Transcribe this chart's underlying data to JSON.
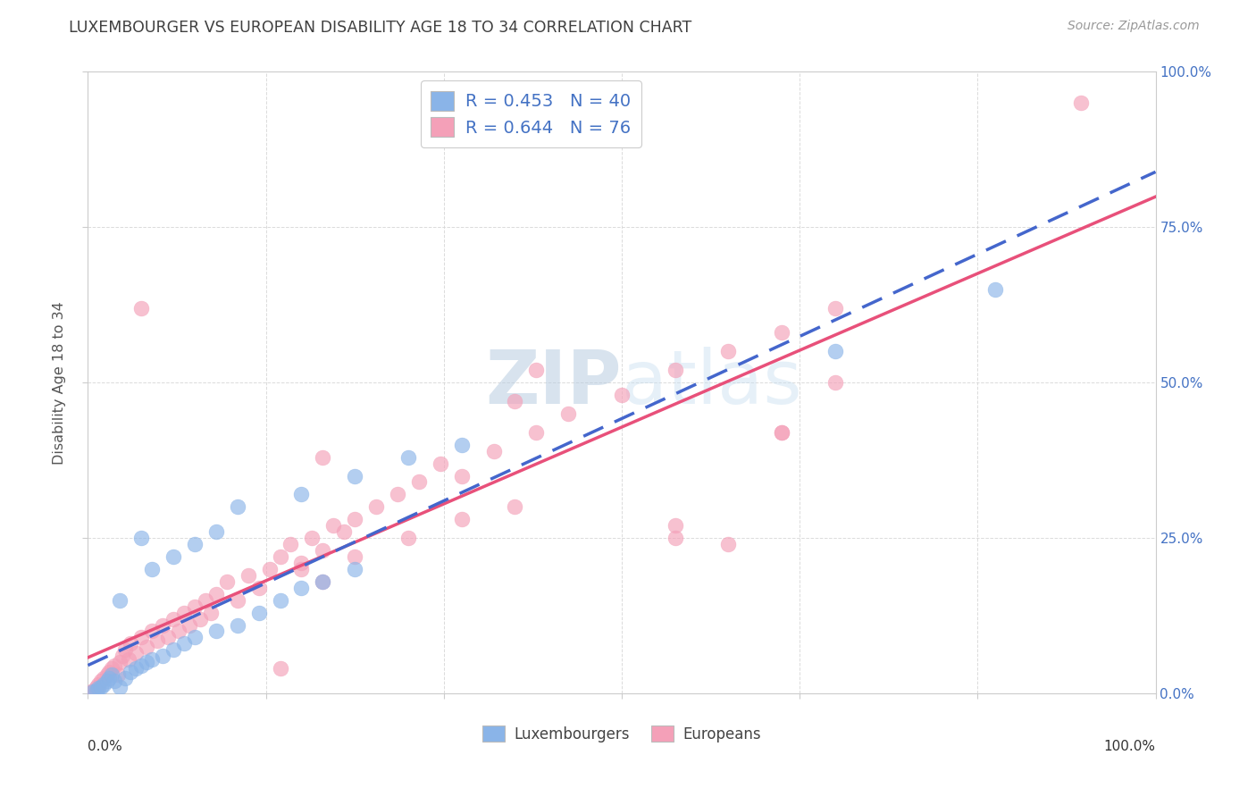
{
  "title": "LUXEMBOURGER VS EUROPEAN DISABILITY AGE 18 TO 34 CORRELATION CHART",
  "source": "Source: ZipAtlas.com",
  "ylabel": "Disability Age 18 to 34",
  "legend_lux": "Luxembourgers",
  "legend_eur": "Europeans",
  "R_lux": 0.453,
  "N_lux": 40,
  "R_eur": 0.644,
  "N_eur": 76,
  "color_lux": "#8ab4e8",
  "color_eur": "#f4a0b8",
  "line_color_lux": "#4466cc",
  "line_color_eur": "#e8507a",
  "blue_text": "#4472c4",
  "watermark_color": "#cde8f5",
  "grid_color": "#d8d8d8",
  "title_color": "#404040",
  "source_color": "#999999",
  "lux_x": [
    0.5,
    0.8,
    1.0,
    1.2,
    1.5,
    1.8,
    2.0,
    2.2,
    2.5,
    3.0,
    3.5,
    4.0,
    4.5,
    5.0,
    5.5,
    6.0,
    7.0,
    8.0,
    9.0,
    10.0,
    12.0,
    14.0,
    16.0,
    18.0,
    20.0,
    22.0,
    25.0,
    3.0,
    5.0,
    6.0,
    8.0,
    10.0,
    12.0,
    14.0,
    20.0,
    25.0,
    30.0,
    35.0,
    70.0,
    85.0
  ],
  "lux_y": [
    0.3,
    0.5,
    0.8,
    1.0,
    1.5,
    2.0,
    2.5,
    3.0,
    2.0,
    1.0,
    2.5,
    3.5,
    4.0,
    4.5,
    5.0,
    5.5,
    6.0,
    7.0,
    8.0,
    9.0,
    10.0,
    11.0,
    13.0,
    15.0,
    17.0,
    18.0,
    20.0,
    15.0,
    25.0,
    20.0,
    22.0,
    24.0,
    26.0,
    30.0,
    32.0,
    35.0,
    38.0,
    40.0,
    55.0,
    65.0
  ],
  "eur_x": [
    0.3,
    0.5,
    0.8,
    1.0,
    1.2,
    1.5,
    1.8,
    2.0,
    2.2,
    2.5,
    2.8,
    3.0,
    3.2,
    3.5,
    3.8,
    4.0,
    4.5,
    5.0,
    5.5,
    6.0,
    6.5,
    7.0,
    7.5,
    8.0,
    8.5,
    9.0,
    9.5,
    10.0,
    10.5,
    11.0,
    11.5,
    12.0,
    13.0,
    14.0,
    15.0,
    16.0,
    17.0,
    18.0,
    19.0,
    20.0,
    21.0,
    22.0,
    23.0,
    24.0,
    25.0,
    27.0,
    29.0,
    31.0,
    33.0,
    35.0,
    38.0,
    42.0,
    45.0,
    50.0,
    55.0,
    60.0,
    65.0,
    70.0,
    20.0,
    22.0,
    25.0,
    30.0,
    35.0,
    40.0,
    5.0,
    22.0,
    40.0,
    55.0,
    60.0,
    65.0,
    70.0,
    93.0,
    42.0,
    18.0,
    55.0,
    65.0
  ],
  "eur_y": [
    0.2,
    0.5,
    1.0,
    1.5,
    2.0,
    2.5,
    3.0,
    3.5,
    4.0,
    4.5,
    3.0,
    5.0,
    6.0,
    7.0,
    5.5,
    8.0,
    6.5,
    9.0,
    7.5,
    10.0,
    8.5,
    11.0,
    9.0,
    12.0,
    10.0,
    13.0,
    11.0,
    14.0,
    12.0,
    15.0,
    13.0,
    16.0,
    18.0,
    15.0,
    19.0,
    17.0,
    20.0,
    22.0,
    24.0,
    21.0,
    25.0,
    23.0,
    27.0,
    26.0,
    28.0,
    30.0,
    32.0,
    34.0,
    37.0,
    35.0,
    39.0,
    42.0,
    45.0,
    48.0,
    52.0,
    55.0,
    58.0,
    62.0,
    20.0,
    18.0,
    22.0,
    25.0,
    28.0,
    30.0,
    62.0,
    38.0,
    47.0,
    27.0,
    24.0,
    42.0,
    50.0,
    95.0,
    52.0,
    4.0,
    25.0,
    42.0
  ]
}
